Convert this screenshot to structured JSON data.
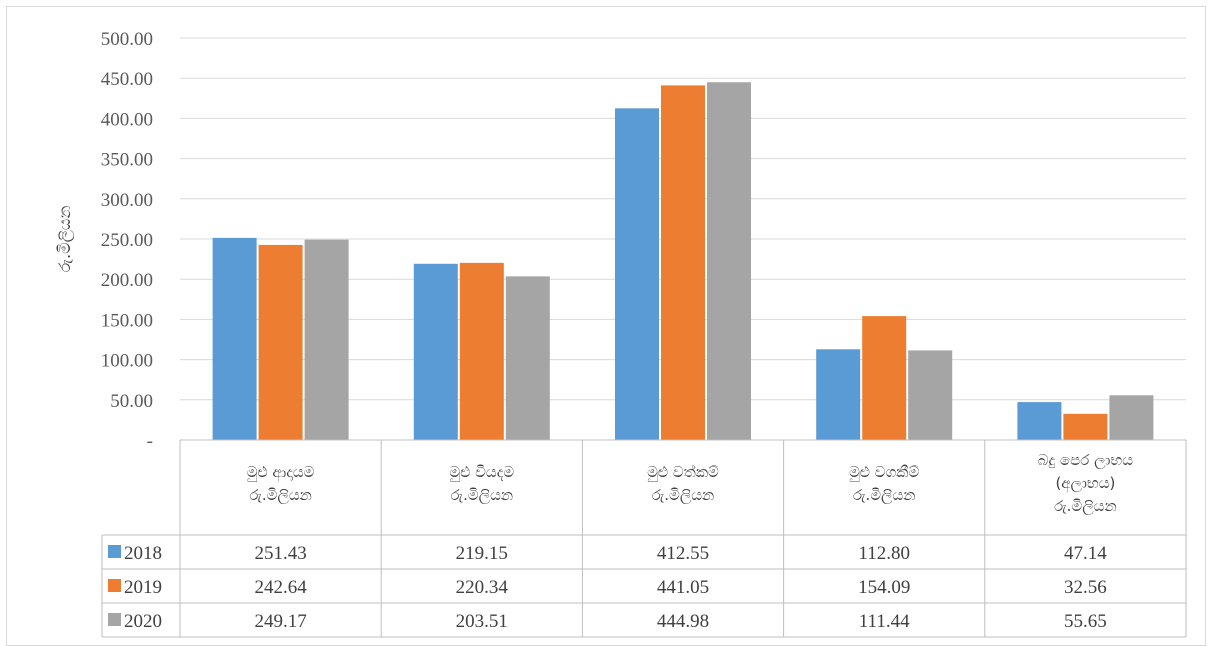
{
  "chart_data": {
    "type": "bar",
    "title": "",
    "xlabel": "",
    "ylabel": "රු.මිලියන",
    "ylim": [
      0,
      500
    ],
    "yticks": [
      "-",
      "50.00",
      "100.00",
      "150.00",
      "200.00",
      "250.00",
      "300.00",
      "350.00",
      "400.00",
      "450.00",
      "500.00"
    ],
    "grid": true,
    "legend": "data-table-left",
    "categories": [
      [
        "මුළු ආදායම",
        "රු.මිලියන"
      ],
      [
        "මුළු වියදම",
        "රු.මිලියන"
      ],
      [
        "මුළු වත්කම්",
        "රු.මිලියන"
      ],
      [
        "මුළු වගකීම්",
        "රු.මිලියන"
      ],
      [
        "බදු පෙර ලාභය",
        "(අලාභය)",
        "රු.මිලියන"
      ]
    ],
    "series": [
      {
        "name": "2018",
        "color": "#5b9bd5",
        "values": [
          251.43,
          219.15,
          412.55,
          112.8,
          47.14
        ],
        "labels": [
          "251.43",
          "219.15",
          "412.55",
          "112.80",
          "47.14"
        ]
      },
      {
        "name": "2019",
        "color": "#ed7d31",
        "values": [
          242.64,
          220.34,
          441.05,
          154.09,
          32.56
        ],
        "labels": [
          "242.64",
          "220.34",
          "441.05",
          "154.09",
          "32.56"
        ]
      },
      {
        "name": "2020",
        "color": "#a5a5a5",
        "values": [
          249.17,
          203.51,
          444.98,
          111.44,
          55.65
        ],
        "labels": [
          "249.17",
          "203.51",
          "444.98",
          "111.44",
          "55.65"
        ]
      }
    ]
  }
}
